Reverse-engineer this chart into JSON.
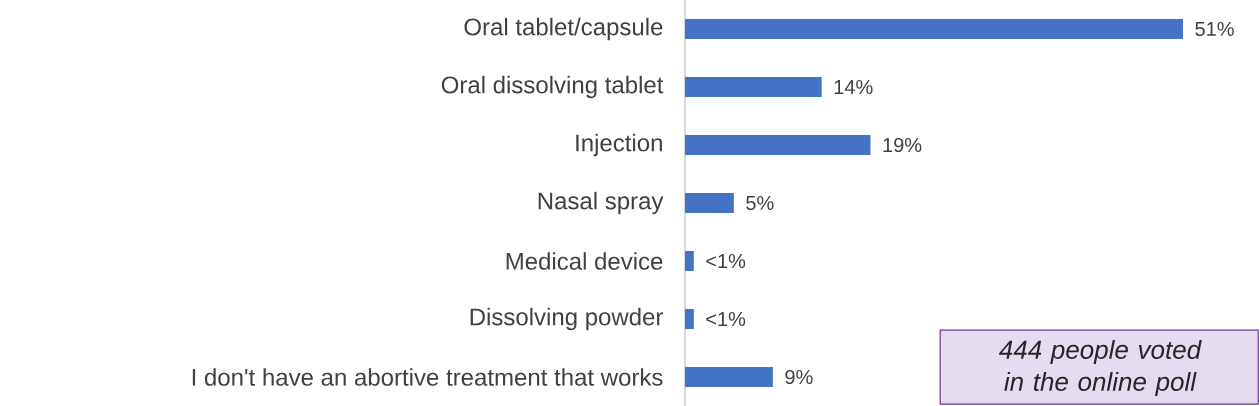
{
  "chart_data": {
    "type": "bar",
    "orientation": "horizontal",
    "categories": [
      "Oral tablet/capsule",
      "Oral dissolving tablet",
      "Injection",
      "Nasal spray",
      "Medical device",
      "Dissolving powder",
      "I don't have an abortive treatment that works"
    ],
    "values": [
      51,
      14,
      19,
      5,
      0.9,
      0.9,
      9
    ],
    "value_labels": [
      "51%",
      "14%",
      "19%",
      "5%",
      "<1%",
      "<1%",
      "9%"
    ],
    "color": "#4472c4",
    "annotations": [
      "444 people voted in the online poll"
    ]
  }
}
